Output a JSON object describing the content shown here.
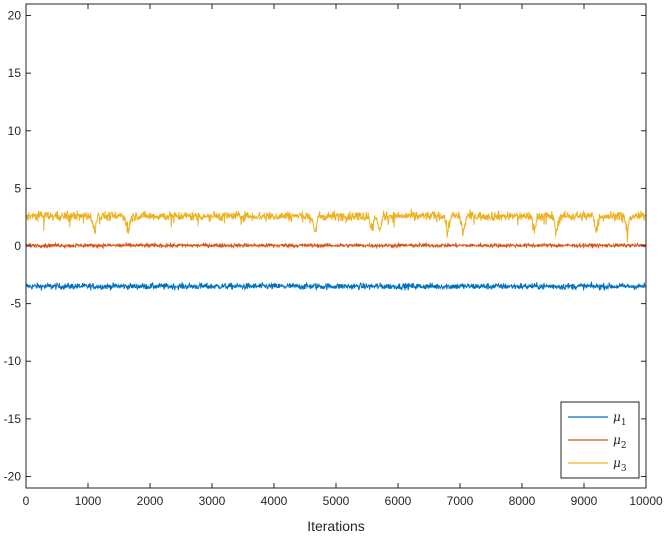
{
  "chart_data": {
    "type": "line",
    "xlabel": "Iterations",
    "ylabel": "",
    "xlim": [
      0,
      10000
    ],
    "ylim": [
      -21,
      21
    ],
    "xticks": [
      0,
      1000,
      2000,
      3000,
      4000,
      5000,
      6000,
      7000,
      8000,
      9000,
      10000
    ],
    "yticks": [
      -20,
      -15,
      -10,
      -5,
      0,
      5,
      10,
      15,
      20
    ],
    "grid": false,
    "legend_position": "bottom-right",
    "series": [
      {
        "name": "μ",
        "subscript": "1",
        "color": "#0072BD",
        "mean": -3.5,
        "noise": 0.12,
        "dips": []
      },
      {
        "name": "μ",
        "subscript": "2",
        "color": "#D95319",
        "mean": 0.05,
        "noise": 0.07,
        "dips": []
      },
      {
        "name": "μ",
        "subscript": "3",
        "color": "#EDB120",
        "mean": 2.6,
        "noise": 0.18,
        "dips": [
          1100,
          1650,
          4650,
          5580,
          5700,
          6800,
          7050,
          8200,
          8550,
          9200,
          9700
        ]
      }
    ]
  }
}
